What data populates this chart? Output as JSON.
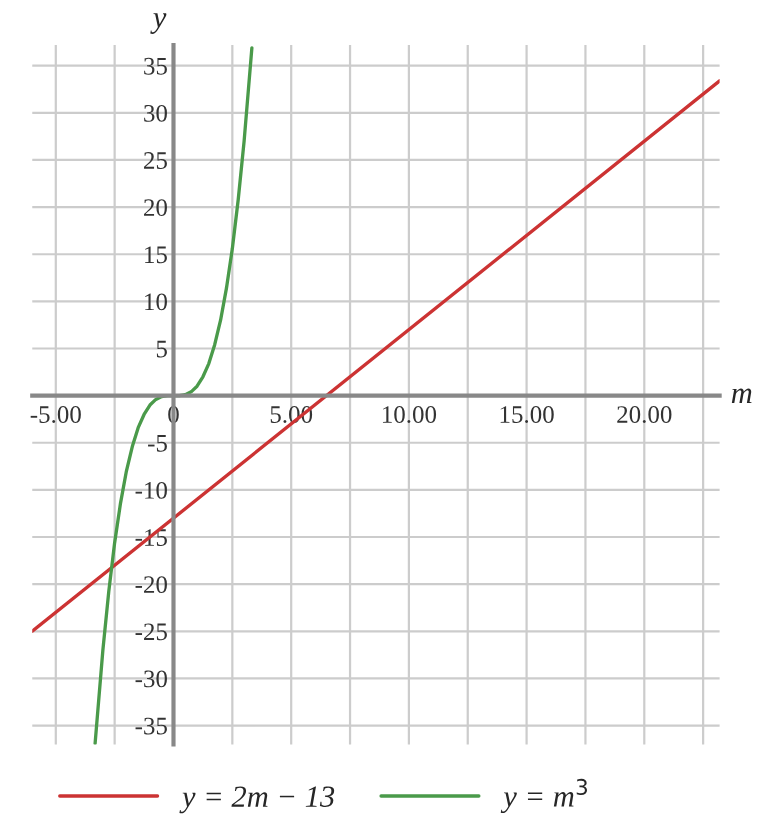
{
  "chart_data": {
    "type": "line",
    "xlabel": "m",
    "ylabel": "y",
    "xlim": [
      -6,
      23.2
    ],
    "ylim": [
      -37,
      37.2
    ],
    "xticks": [
      {
        "value": -5,
        "label": "-5.00"
      },
      {
        "value": -2.5,
        "label": null
      },
      {
        "value": 0,
        "label": "0"
      },
      {
        "value": 2.5,
        "label": null
      },
      {
        "value": 5,
        "label": "5.00"
      },
      {
        "value": 7.5,
        "label": null
      },
      {
        "value": 10,
        "label": "10.00"
      },
      {
        "value": 12.5,
        "label": null
      },
      {
        "value": 15,
        "label": "15.00"
      },
      {
        "value": 17.5,
        "label": null
      },
      {
        "value": 20,
        "label": "20.00"
      },
      {
        "value": 22.5,
        "label": null
      }
    ],
    "yticks": [
      -35,
      -30,
      -25,
      -20,
      -15,
      -10,
      -5,
      {
        "value": 0,
        "label": null
      },
      5,
      10,
      15,
      20,
      25,
      30,
      35
    ],
    "grid": true,
    "legend": "bottom",
    "series": [
      {
        "name": "y = 2m − 13",
        "color": "#cc3333",
        "x": [
          -6,
          23.2
        ],
        "values": [
          -25,
          33.4
        ]
      },
      {
        "name": "y = m$^{3}$",
        "color": "#4a9a4a",
        "x": [
          -3.33,
          -3,
          -2.75,
          -2.5,
          -2.25,
          -2,
          -1.75,
          -1.5,
          -1.25,
          -1,
          -0.75,
          -0.5,
          -0.25,
          0,
          0.25,
          0.5,
          0.75,
          1,
          1.25,
          1.5,
          1.75,
          2,
          2.25,
          2.5,
          2.75,
          3,
          3.33
        ],
        "values": [
          -36.9,
          -27,
          -20.8,
          -15.6,
          -11.4,
          -8,
          -5.4,
          -3.4,
          -2,
          -1,
          -0.4,
          -0.1,
          0,
          0,
          0,
          0.1,
          0.4,
          1,
          2,
          3.4,
          5.4,
          8,
          11.4,
          15.6,
          20.8,
          27,
          36.9
        ]
      }
    ]
  }
}
